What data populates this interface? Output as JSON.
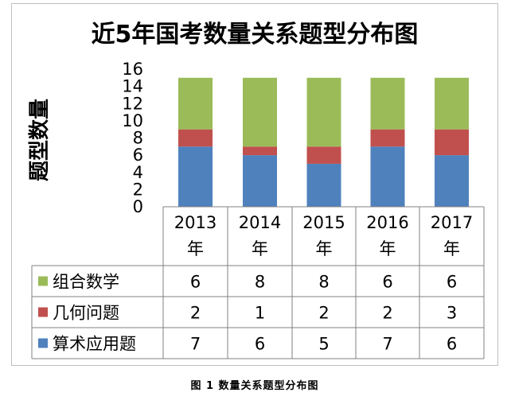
{
  "chart_data": {
    "type": "bar",
    "stacked": true,
    "title": "近5年国考数量关系题型分布图",
    "ylabel": "题型数量",
    "xlabel": "",
    "ylim": [
      0,
      16
    ],
    "yticks": [
      0,
      2,
      4,
      6,
      8,
      10,
      12,
      14,
      16
    ],
    "grid": false,
    "legend": "table-left",
    "data_table": true,
    "categories": [
      "2013年",
      "2014年",
      "2015年",
      "2016年",
      "2017年"
    ],
    "category_lines": [
      [
        "2013",
        "年"
      ],
      [
        "2014",
        "年"
      ],
      [
        "2015",
        "年"
      ],
      [
        "2016",
        "年"
      ],
      [
        "2017",
        "年"
      ]
    ],
    "series": [
      {
        "name": "组合数学",
        "values": [
          6,
          8,
          8,
          6,
          6
        ],
        "color": "#9BBB59"
      },
      {
        "name": "几何问题",
        "values": [
          2,
          1,
          2,
          2,
          3
        ],
        "color": "#C0504D"
      },
      {
        "name": "算术应用题",
        "values": [
          7,
          6,
          5,
          7,
          6
        ],
        "color": "#4F81BD"
      }
    ],
    "stack_order": [
      "算术应用题",
      "几何问题",
      "组合数学"
    ]
  },
  "caption": "图  1   数量关系题型分布图",
  "colors": {
    "frame": "#bfbfbf",
    "table_line": "#808080"
  }
}
